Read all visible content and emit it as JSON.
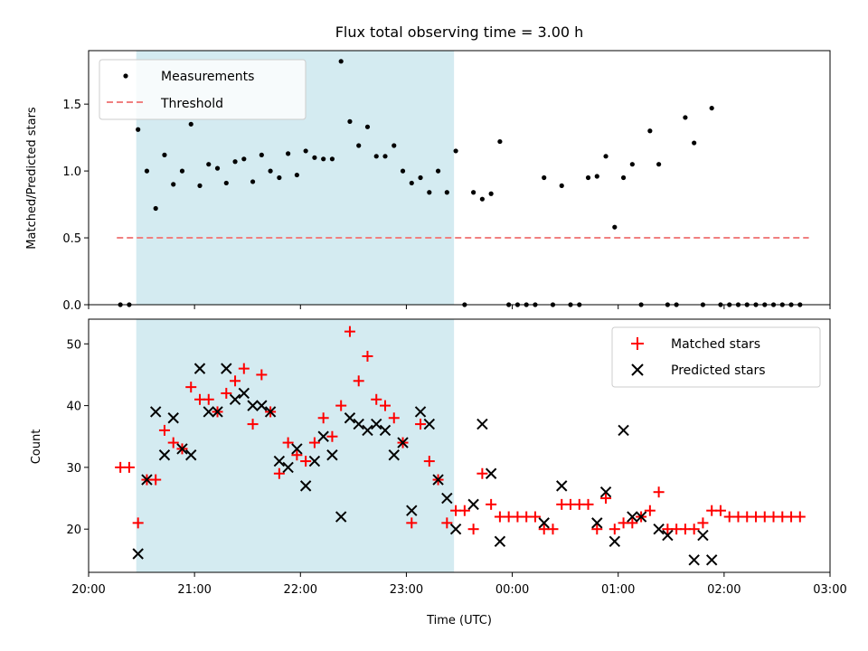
{
  "chart_data": [
    {
      "type": "scatter",
      "panel": "top",
      "title": "Flux total observing time = 3.00 h",
      "ylabel": "Matched/Predicted stars",
      "ylim": [
        0,
        1.9
      ],
      "yticks": [
        0.0,
        0.5,
        1.0,
        1.5
      ],
      "ytick_labels": [
        "0.0",
        "0.5",
        "1.0",
        "1.5"
      ],
      "xlim": [
        "20:00",
        "03:00"
      ],
      "highlight_span": [
        "20:27",
        "23:27"
      ],
      "highlight_color": "#d4ebf1",
      "legend": {
        "position": "upper-left",
        "entries": [
          "Measurements",
          "Threshold"
        ]
      },
      "threshold": {
        "name": "Threshold",
        "y": 0.5,
        "x_start": "20:16",
        "x_end": "02:48",
        "color": "#f08080",
        "style": "dashed"
      },
      "series": [
        {
          "name": "Measurements",
          "color": "#000000",
          "marker": "dot",
          "x": [
            "20:18",
            "20:23",
            "20:28",
            "20:33",
            "20:38",
            "20:43",
            "20:48",
            "20:53",
            "20:58",
            "21:03",
            "21:08",
            "21:13",
            "21:18",
            "21:23",
            "21:28",
            "21:33",
            "21:38",
            "21:43",
            "21:48",
            "21:53",
            "21:58",
            "22:03",
            "22:08",
            "22:13",
            "22:18",
            "22:23",
            "22:28",
            "22:33",
            "22:38",
            "22:43",
            "22:48",
            "22:53",
            "22:58",
            "23:03",
            "23:08",
            "23:13",
            "23:18",
            "23:23",
            "23:28",
            "23:33",
            "23:38",
            "23:43",
            "23:48",
            "23:53",
            "23:58",
            "00:03",
            "00:08",
            "00:13",
            "00:18",
            "00:23",
            "00:28",
            "00:33",
            "00:38",
            "00:43",
            "00:48",
            "00:53",
            "00:58",
            "01:03",
            "01:08",
            "01:13",
            "01:18",
            "01:23",
            "01:28",
            "01:33",
            "01:38",
            "01:43",
            "01:48",
            "01:53",
            "01:58",
            "02:03",
            "02:08",
            "02:13",
            "02:18",
            "02:23",
            "02:28",
            "02:33",
            "02:38",
            "02:43"
          ],
          "y": [
            0,
            0,
            1.31,
            1.0,
            0.72,
            1.12,
            0.9,
            1.0,
            1.35,
            0.89,
            1.05,
            1.02,
            0.91,
            1.07,
            1.09,
            0.92,
            1.12,
            1.0,
            0.95,
            1.13,
            0.97,
            1.15,
            1.1,
            1.09,
            1.09,
            1.82,
            1.37,
            1.19,
            1.33,
            1.11,
            1.11,
            1.19,
            1.0,
            0.91,
            0.95,
            0.84,
            1.0,
            0.84,
            1.15,
            0,
            0.84,
            0.79,
            0.83,
            1.22,
            0,
            0,
            0,
            0,
            0.95,
            0,
            0.89,
            0,
            0,
            0.95,
            0.96,
            1.11,
            0.58,
            0.95,
            1.05,
            0,
            1.3,
            1.05,
            0,
            0,
            1.4,
            1.21,
            0,
            1.47,
            0,
            0,
            0,
            0,
            0,
            0,
            0,
            0,
            0,
            0
          ]
        }
      ]
    },
    {
      "type": "scatter",
      "panel": "bottom",
      "xlabel": "Time (UTC)",
      "ylabel": "Count",
      "ylim": [
        13,
        54
      ],
      "yticks": [
        20,
        30,
        40,
        50
      ],
      "ytick_labels": [
        "20",
        "30",
        "40",
        "50"
      ],
      "xlim": [
        "20:00",
        "03:00"
      ],
      "xticks": [
        "20:00",
        "21:00",
        "22:00",
        "23:00",
        "00:00",
        "01:00",
        "02:00",
        "03:00"
      ],
      "xtick_labels": [
        "20:00",
        "21:00",
        "22:00",
        "23:00",
        "00:00",
        "01:00",
        "02:00",
        "03:00"
      ],
      "highlight_span": [
        "20:27",
        "23:27"
      ],
      "highlight_color": "#d4ebf1",
      "legend": {
        "position": "upper-right",
        "entries": [
          "Matched stars",
          "Predicted stars"
        ]
      },
      "series": [
        {
          "name": "Matched stars",
          "color": "#ff0000",
          "marker": "plus",
          "x": [
            "20:18",
            "20:23",
            "20:28",
            "20:33",
            "20:38",
            "20:43",
            "20:48",
            "20:53",
            "20:58",
            "21:03",
            "21:08",
            "21:13",
            "21:18",
            "21:23",
            "21:28",
            "21:33",
            "21:38",
            "21:43",
            "21:48",
            "21:53",
            "21:58",
            "22:03",
            "22:08",
            "22:13",
            "22:18",
            "22:23",
            "22:28",
            "22:33",
            "22:38",
            "22:43",
            "22:48",
            "22:53",
            "22:58",
            "23:03",
            "23:08",
            "23:13",
            "23:18",
            "23:23",
            "23:28",
            "23:33",
            "23:38",
            "23:43",
            "23:48",
            "23:53",
            "23:58",
            "00:03",
            "00:08",
            "00:13",
            "00:18",
            "00:23",
            "00:28",
            "00:33",
            "00:38",
            "00:43",
            "00:48",
            "00:53",
            "00:58",
            "01:03",
            "01:08",
            "01:13",
            "01:18",
            "01:23",
            "01:28",
            "01:33",
            "01:38",
            "01:43",
            "01:48",
            "01:53",
            "01:58",
            "02:03",
            "02:08",
            "02:13",
            "02:18",
            "02:23",
            "02:28",
            "02:33",
            "02:38",
            "02:43"
          ],
          "y": [
            30,
            30,
            21,
            28,
            28,
            36,
            34,
            33,
            43,
            41,
            41,
            39,
            42,
            44,
            46,
            37,
            45,
            39,
            29,
            34,
            32,
            31,
            34,
            38,
            35,
            40,
            52,
            44,
            48,
            41,
            40,
            38,
            34,
            21,
            37,
            31,
            28,
            21,
            23,
            23,
            20,
            29,
            24,
            22,
            22,
            22,
            22,
            22,
            20,
            20,
            24,
            24,
            24,
            24,
            20,
            25,
            20,
            21,
            21,
            22,
            23,
            26,
            20,
            20,
            20,
            20,
            21,
            23,
            23,
            22,
            22,
            22,
            22,
            22,
            22,
            22,
            22,
            22
          ]
        },
        {
          "name": "Predicted stars",
          "color": "#000000",
          "marker": "cross",
          "x": [
            "20:28",
            "20:33",
            "20:38",
            "20:43",
            "20:48",
            "20:53",
            "20:58",
            "21:03",
            "21:08",
            "21:13",
            "21:18",
            "21:23",
            "21:28",
            "21:33",
            "21:38",
            "21:43",
            "21:48",
            "21:53",
            "21:58",
            "22:03",
            "22:08",
            "22:13",
            "22:18",
            "22:23",
            "22:28",
            "22:33",
            "22:38",
            "22:43",
            "22:48",
            "22:53",
            "22:58",
            "23:03",
            "23:08",
            "23:13",
            "23:18",
            "23:23",
            "23:28",
            "23:38",
            "23:43",
            "23:48",
            "23:53",
            "00:18",
            "00:28",
            "00:48",
            "00:53",
            "00:58",
            "01:03",
            "01:08",
            "01:13",
            "01:23",
            "01:28",
            "01:43",
            "01:48",
            "01:53"
          ],
          "y": [
            16,
            28,
            39,
            32,
            38,
            33,
            32,
            46,
            39,
            39,
            46,
            41,
            42,
            40,
            40,
            39,
            31,
            30,
            33,
            27,
            31,
            35,
            32,
            22,
            38,
            37,
            36,
            37,
            36,
            32,
            34,
            23,
            39,
            37,
            28,
            25,
            20,
            24,
            37,
            29,
            18,
            21,
            27,
            21,
            26,
            18,
            36,
            22,
            22,
            20,
            19,
            15,
            19,
            15
          ]
        }
      ]
    }
  ]
}
